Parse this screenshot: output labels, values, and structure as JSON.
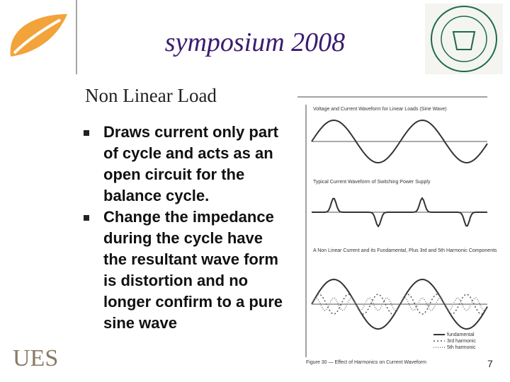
{
  "header": {
    "title": "symposium 2008"
  },
  "slide": {
    "heading": "Non Linear Load",
    "bullets": [
      "Draws current only part of cycle and acts as an open circuit for the balance cycle.",
      "Change the impedance during the cycle have the resultant wave form is distortion and no longer confirm to a pure sine wave"
    ],
    "footer": "UES",
    "page_number": "7"
  },
  "figure": {
    "panels": [
      "Voltage and Current Waveform for Linear Loads (Sine Wave)",
      "Typical Current Waveform of Switching Power Supply",
      "A Non Linear Current and its Fundamental, Plus 3rd and 5th Harmonic Components"
    ],
    "legend": [
      "fundamental",
      "3rd harmonic",
      "5th harmonic"
    ],
    "caption": "Figure 30 — Effect of Harmonics on Current Waveform"
  }
}
